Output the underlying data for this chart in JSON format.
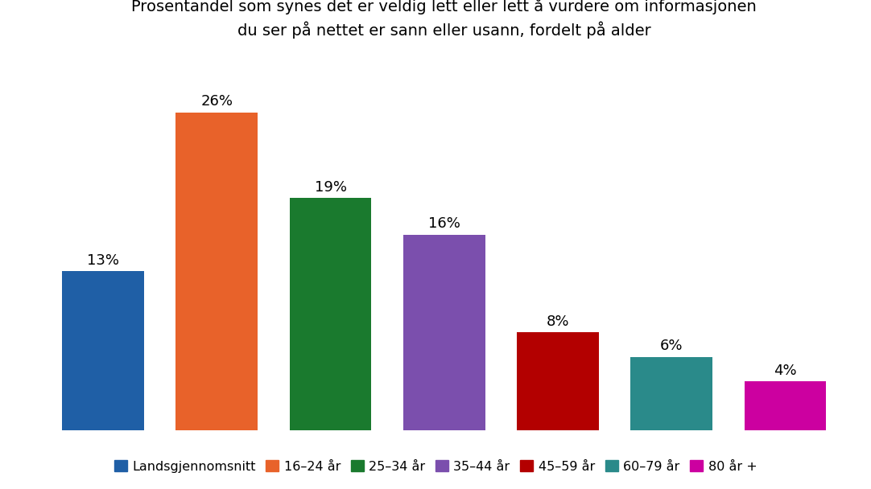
{
  "title": "Prosentandel som synes det er veldig lett eller lett å vurdere om informasjonen\ndu ser på nettet er sann eller usann, fordelt på alder",
  "categories": [
    "Landsgjennomsnitt",
    "16–24 år",
    "25–34 år",
    "35–44 år",
    "45–59 år",
    "60–79 år",
    "80 år +"
  ],
  "values": [
    13,
    26,
    19,
    16,
    8,
    6,
    4
  ],
  "colors": [
    "#1f5fa6",
    "#e8622a",
    "#1a7a2e",
    "#7b4fad",
    "#b30000",
    "#2a8a8a",
    "#cc00a0"
  ],
  "labels": [
    "13%",
    "26%",
    "19%",
    "16%",
    "8%",
    "6%",
    "4%"
  ],
  "ylim": [
    0,
    30
  ],
  "background_color": "#ffffff",
  "title_fontsize": 14,
  "label_fontsize": 13,
  "legend_fontsize": 11.5,
  "bar_width": 0.72
}
